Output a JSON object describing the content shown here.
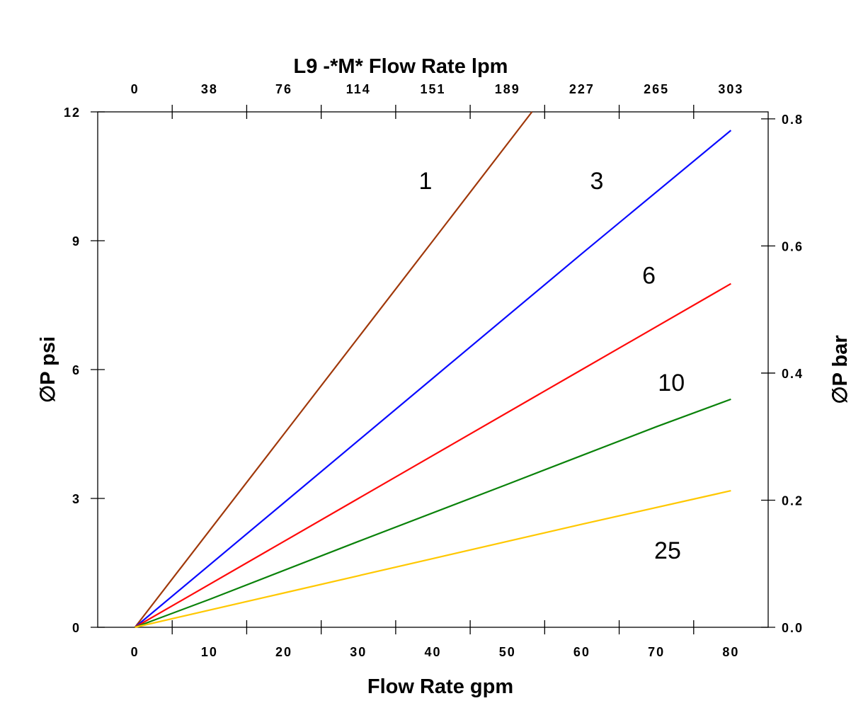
{
  "chart_data": {
    "type": "line",
    "title": "L9 -*M* Flow Rate lpm",
    "xlabel": "Flow Rate gpm",
    "ylabel": "∅P psi",
    "y2label": "∅P bar",
    "xlim": [
      -5,
      85
    ],
    "ylim": [
      0,
      12
    ],
    "y2lim": [
      0,
      0.811
    ],
    "grid": false,
    "x_ticks": [
      0,
      10,
      20,
      30,
      40,
      50,
      60,
      70,
      80
    ],
    "x_tick_labels": [
      "0",
      "10",
      "20",
      "30",
      "40",
      "50",
      "60",
      "70",
      "80"
    ],
    "x2_tick_labels": [
      "0",
      "38",
      "76",
      "114",
      "151",
      "189",
      "227",
      "265",
      "303"
    ],
    "y_ticks": [
      0,
      3,
      6,
      9,
      12
    ],
    "y_tick_labels": [
      "0",
      "3",
      "6",
      "9",
      "12"
    ],
    "y2_ticks": [
      0,
      0.2,
      0.4,
      0.6,
      0.8
    ],
    "y2_tick_labels": [
      "0.0",
      "0.2",
      "0.4",
      "0.6",
      "0.8"
    ],
    "series": [
      {
        "label": "1",
        "color": "#a0380a",
        "x": [
          0,
          20,
          40,
          53.3
        ],
        "y": [
          0,
          4.5,
          9.0,
          12.0
        ],
        "label_at": [
          39,
          10.4
        ]
      },
      {
        "label": "3",
        "color": "#0a0aff",
        "x": [
          0,
          20,
          40,
          60,
          80
        ],
        "y": [
          0,
          2.9,
          5.8,
          8.7,
          11.57
        ],
        "label_at": [
          62,
          10.4
        ]
      },
      {
        "label": "6",
        "color": "#ff0a0a",
        "x": [
          0,
          20,
          40,
          60,
          80
        ],
        "y": [
          0,
          2.0,
          4.0,
          6.0,
          8.0
        ],
        "label_at": [
          69,
          8.2
        ]
      },
      {
        "label": "10",
        "color": "#0a820a",
        "x": [
          0,
          10,
          30,
          50,
          60,
          70,
          80
        ],
        "y": [
          0,
          0.65,
          2.0,
          3.33,
          4.0,
          4.67,
          5.31
        ],
        "label_at": [
          72,
          5.7
        ]
      },
      {
        "label": "25",
        "color": "#ffc800",
        "x": [
          0,
          20,
          40,
          60,
          80
        ],
        "y": [
          0,
          0.8,
          1.6,
          2.4,
          3.18
        ],
        "label_at": [
          71.5,
          1.8
        ]
      }
    ]
  }
}
